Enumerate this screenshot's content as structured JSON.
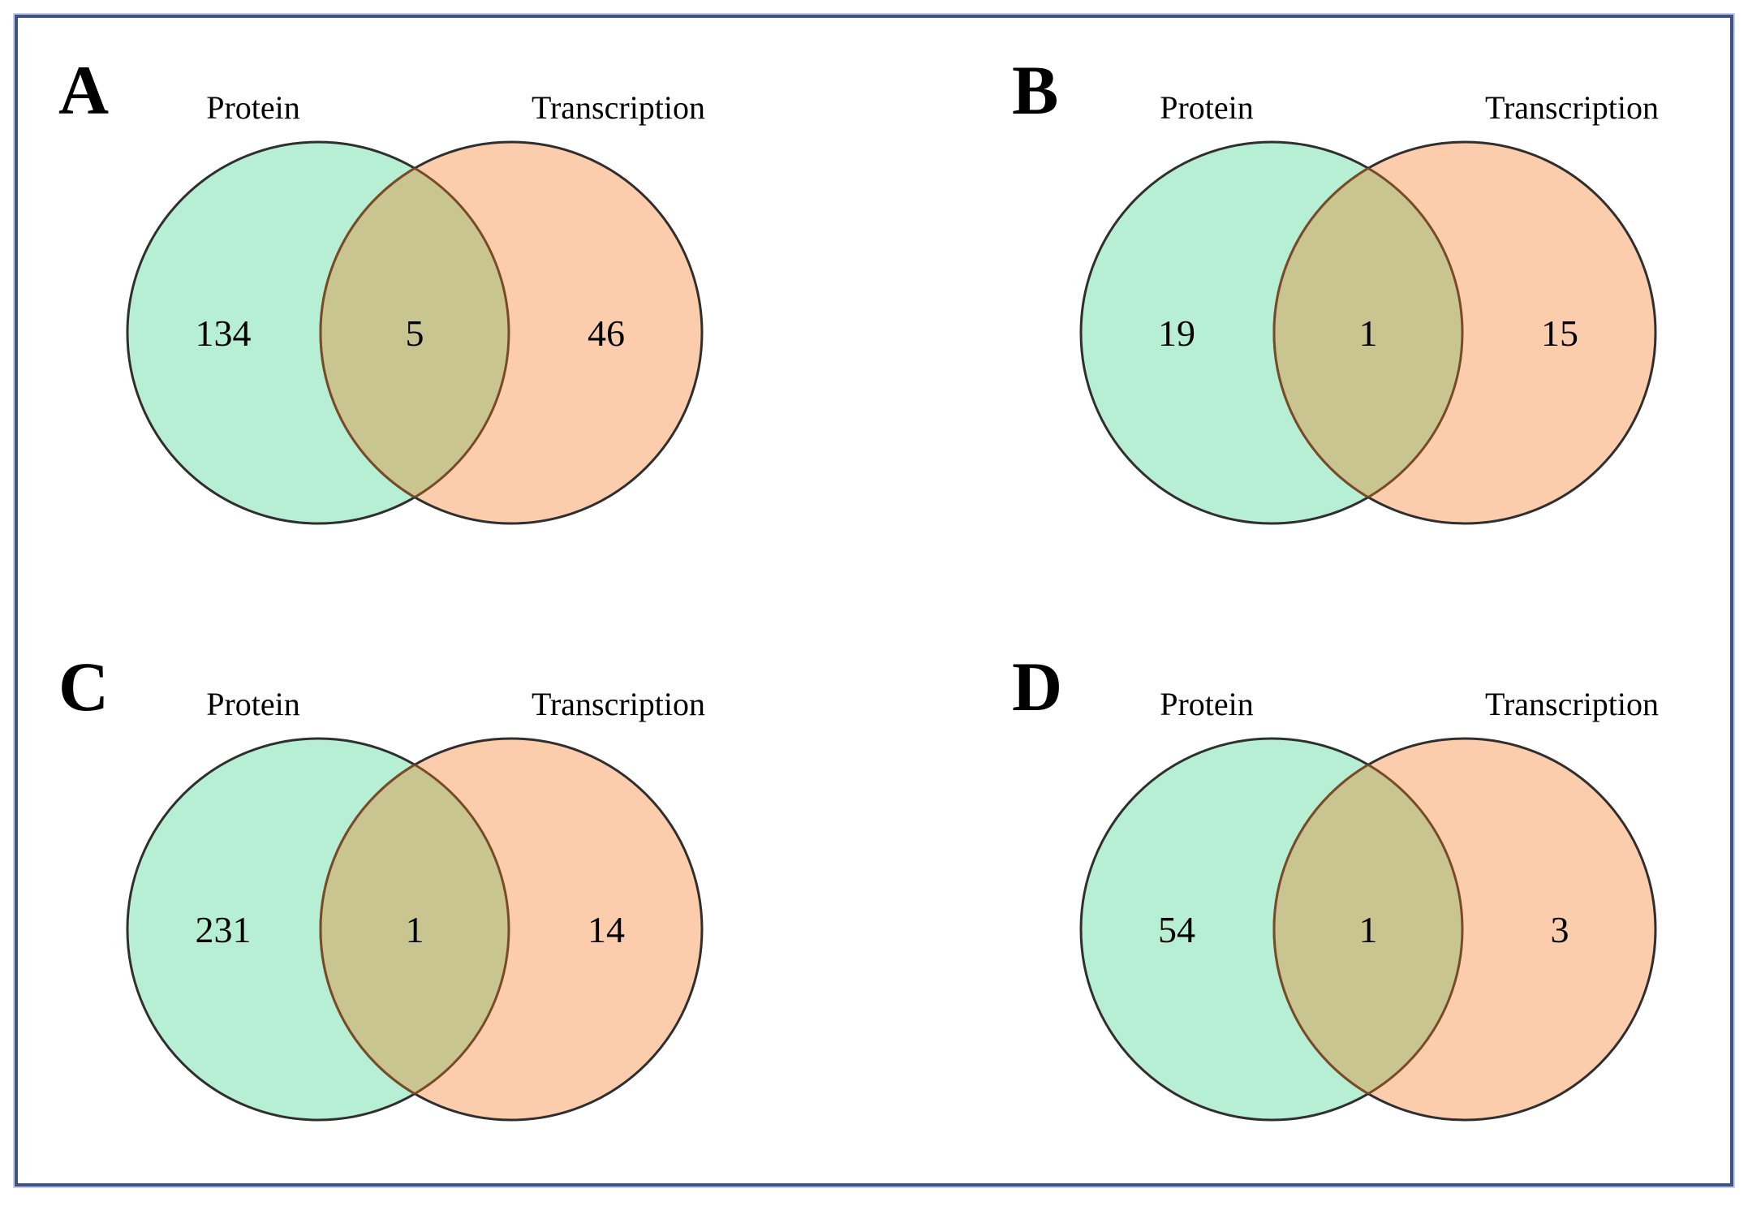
{
  "figure": {
    "type": "venn-diagram-figure",
    "panel_count": 4,
    "set_labels": [
      "Protein",
      "Transcription"
    ]
  },
  "chart_data": [
    {
      "type": "venn",
      "panel_label": "A",
      "sets": [
        "Protein",
        "Transcription"
      ],
      "values": {
        "protein_only": "134",
        "overlap": "5",
        "transcription_only": "46"
      }
    },
    {
      "type": "venn",
      "panel_label": "B",
      "sets": [
        "Protein",
        "Transcription"
      ],
      "values": {
        "protein_only": "19",
        "overlap": "1",
        "transcription_only": "15"
      }
    },
    {
      "type": "venn",
      "panel_label": "C",
      "sets": [
        "Protein",
        "Transcription"
      ],
      "values": {
        "protein_only": "231",
        "overlap": "1",
        "transcription_only": "14"
      }
    },
    {
      "type": "venn",
      "panel_label": "D",
      "sets": [
        "Protein",
        "Transcription"
      ],
      "values": {
        "protein_only": "54",
        "overlap": "1",
        "transcription_only": "3"
      }
    }
  ],
  "style": {
    "colors": {
      "protein_fill": "#b6efd3",
      "transcription_fill": "#fbcdad",
      "overlap_fill": "#c9c591",
      "circle_outline": "#2f2f2f",
      "overlap_outline": "#7a4a26",
      "figure_border": "#3e5286",
      "text": "#000000"
    }
  }
}
